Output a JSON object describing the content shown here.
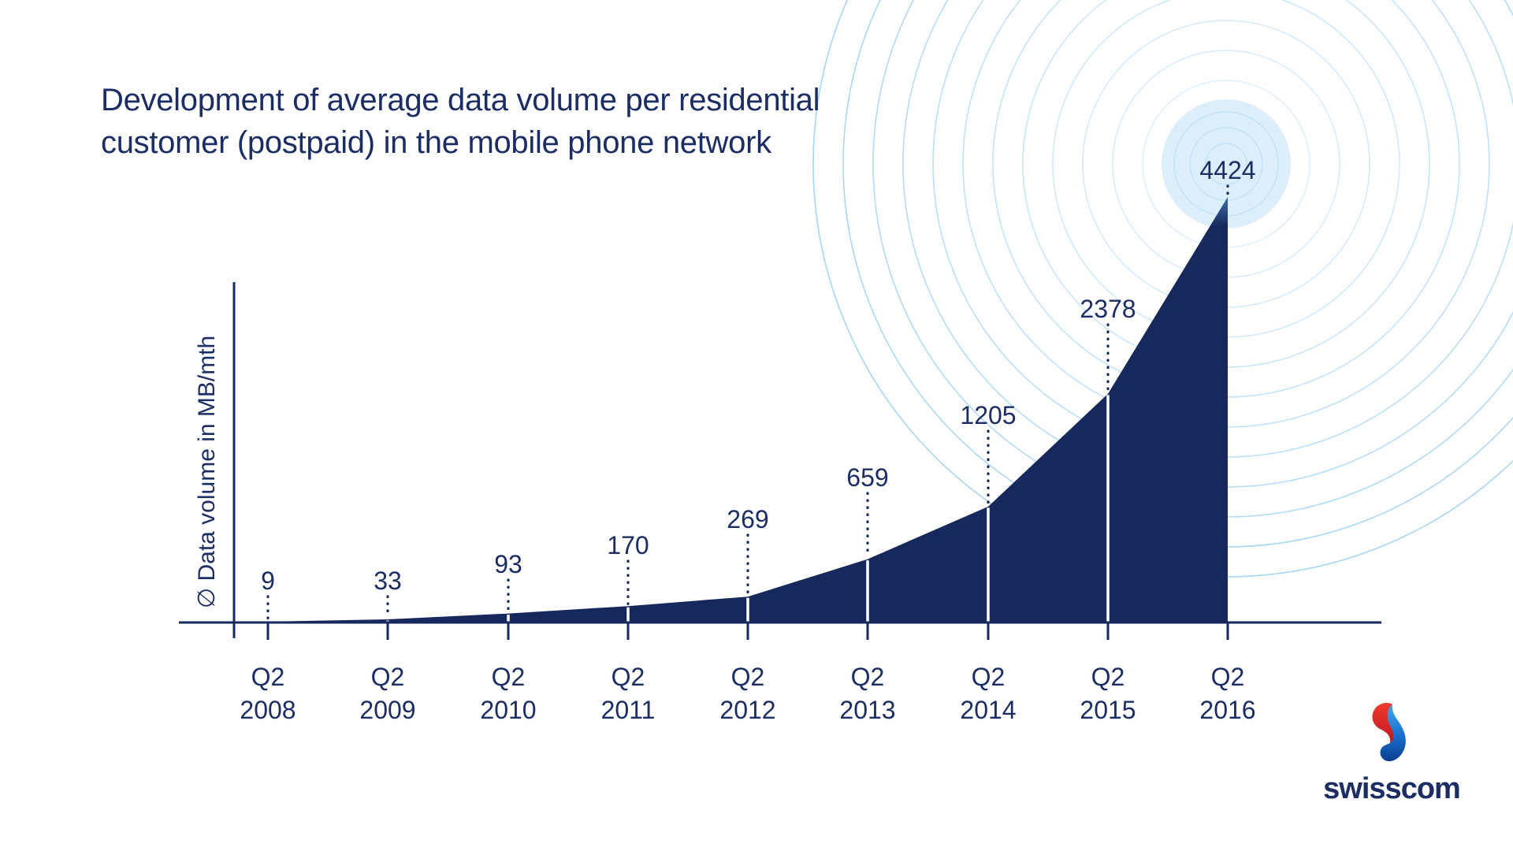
{
  "title": {
    "line1": "Development of average data volume per residential",
    "line2": "customer (postpaid) in the mobile phone network"
  },
  "chart_data": {
    "type": "area",
    "title": "Development of average data volume per residential customer (postpaid) in the mobile phone network",
    "categories": [
      "Q2 2008",
      "Q2 2009",
      "Q2 2010",
      "Q2 2011",
      "Q2 2012",
      "Q2 2013",
      "Q2 2014",
      "Q2 2015",
      "Q2 2016"
    ],
    "values": [
      9,
      33,
      93,
      170,
      269,
      659,
      1205,
      2378,
      4424
    ],
    "value_labels": [
      "9",
      "33",
      "93",
      "170",
      "269",
      "659",
      "1205",
      "2378",
      "4424"
    ],
    "xlabel": "",
    "ylabel": "∅ Data volume in MB/mth",
    "ylim": [
      0,
      4424
    ],
    "grid": false,
    "legend": "none",
    "annotations": "each point labelled with its value above a dotted leader line",
    "decoration": "concentric light-blue circles centered on the 4424 peak"
  },
  "branding": {
    "wordmark": "swisscom"
  },
  "colors": {
    "navy": "#16285c",
    "text_navy": "#1b2d63",
    "ring_blue": "#8ecbf0",
    "inner_ring_blue": "#9fd0f0",
    "glow_blue": "#ddeefb",
    "tip_blue": "#3c6ca8",
    "white": "#ffffff",
    "logo_red_top": "#f03a2e",
    "logo_red_bottom": "#b5121b",
    "logo_blue_top": "#45a7e9",
    "logo_blue_bottom": "#0a3f8f",
    "background": "#ffffff"
  }
}
